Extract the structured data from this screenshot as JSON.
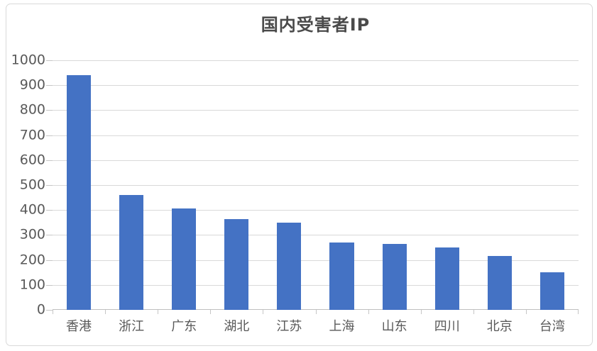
{
  "colors": {
    "bar": "#4472C4",
    "gridline": "#d9d9d9",
    "axis_line": "#bfbfbf",
    "tick_mark": "#c6c6c6",
    "tick_text": "#595959",
    "title_text": "#4a4a4a",
    "frame_border": "#d9d9d9",
    "background": "#ffffff"
  },
  "chart_data": {
    "type": "bar",
    "title": "国内受害者IP",
    "categories": [
      "香港",
      "浙江",
      "广东",
      "湖北",
      "江苏",
      "上海",
      "山东",
      "四川",
      "北京",
      "台湾"
    ],
    "values": [
      940,
      460,
      405,
      365,
      350,
      270,
      265,
      250,
      215,
      150
    ],
    "xlabel": "",
    "ylabel": "",
    "ylim": [
      0,
      1000
    ],
    "ytick_interval": 100,
    "ytick_labels": [
      "0",
      "100",
      "200",
      "300",
      "400",
      "500",
      "600",
      "700",
      "800",
      "900",
      "1000"
    ],
    "grid": true,
    "legend": false,
    "series_color": "#4472C4"
  }
}
